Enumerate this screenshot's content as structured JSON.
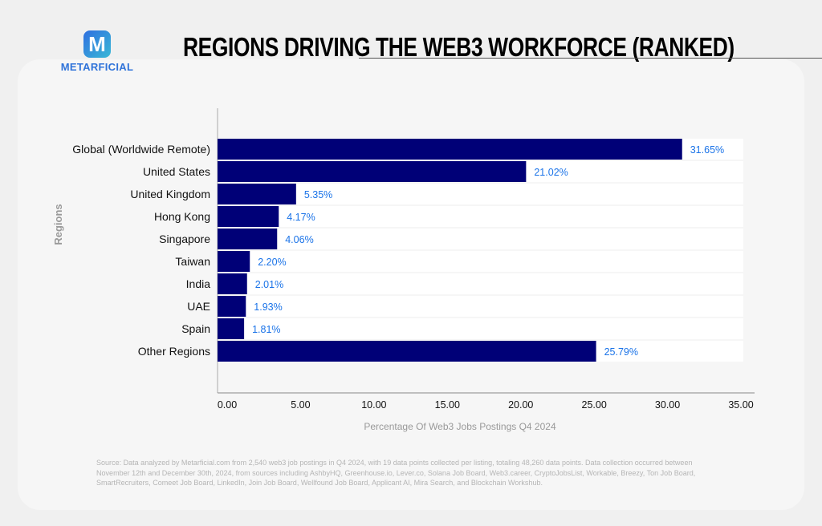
{
  "brand": {
    "logo_letter": "M",
    "name": "METARFICIAL",
    "colors": [
      "#2f6fe0",
      "#39b8d6"
    ]
  },
  "title": "REGIONS DRIVING THE WEB3 WORKFORCE (RANKED)",
  "chart_data": {
    "type": "bar",
    "orientation": "horizontal",
    "title": "REGIONS DRIVING THE WEB3 WORKFORCE (RANKED)",
    "xlabel": "Percentage Of Web3 Jobs Postings Q4 2024",
    "ylabel": "Regions",
    "categories": [
      "Global (Worldwide Remote)",
      "United States",
      "United Kingdom",
      "Hong Kong",
      "Singapore",
      "Taiwan",
      "India",
      "UAE",
      "Spain",
      "Other Regions"
    ],
    "values": [
      31.65,
      21.02,
      5.35,
      4.17,
      4.06,
      2.2,
      2.01,
      1.93,
      1.81,
      25.79
    ],
    "data_labels": [
      "31.65%",
      "21.02%",
      "5.35%",
      "4.17%",
      "4.06%",
      "2.20%",
      "2.01%",
      "1.93%",
      "1.81%",
      "25.79%"
    ],
    "xlim": [
      0,
      35
    ],
    "xticks": [
      "0.00",
      "5.00",
      "10.00",
      "15.00",
      "20.00",
      "25.00",
      "30.00",
      "35.00"
    ],
    "grid": false,
    "bar_color": "#000077",
    "label_color": "#1a73e8"
  },
  "source": "Source: Data analyzed by Metarficial.com from 2,540 web3 job postings in Q4 2024, with 19 data points collected per listing, totaling 48,260  data points. Data collection occurred between November 12th and December 30th, 2024, from sources including AshbyHQ, Greenhouse.io,  Lever.co, Solana Job Board, Web3.career, CryptoJobsList, Workable, Breezy, Ton Job Board, SmartRecruiters, Comeet Job Board, LinkedIn,  Join Job Board, Wellfound Job Board, Applicant AI, Mira Search, and Blockchain Workshub."
}
